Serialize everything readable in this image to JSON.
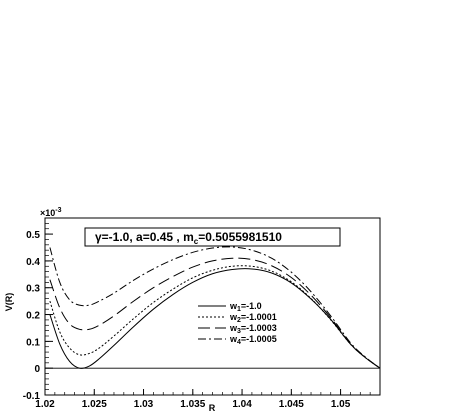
{
  "chart_data": {
    "type": "line",
    "title": "γ=-1.0, a=0.45 , m",
    "title_sub": "c",
    "title_value": "=0.5055981510",
    "xlabel": "R",
    "ylabel": "V(R)",
    "y_multiplier": "×10",
    "y_multiplier_exp": "-3",
    "xlim": [
      1.02,
      1.054
    ],
    "ylim": [
      -0.1,
      0.56
    ],
    "x_ticks": [
      1.02,
      1.025,
      1.03,
      1.035,
      1.04,
      1.045,
      1.05
    ],
    "x_tick_labels": [
      "1.02",
      "1.025",
      "1.03",
      "1.035",
      "1.04",
      "1.045",
      "1.05"
    ],
    "y_ticks": [
      -0.1,
      0,
      0.1,
      0.2,
      0.3,
      0.4,
      0.5
    ],
    "y_tick_labels": [
      "-0.1",
      "0",
      "0.1",
      "0.2",
      "0.3",
      "0.4",
      "0.5"
    ],
    "legend_position": "center-right",
    "grid": false,
    "series": [
      {
        "legend_main": "w",
        "legend_sub": "1",
        "legend_value": "=-1.0",
        "dash": "",
        "x": [
          1.0205,
          1.0215,
          1.0225,
          1.0235,
          1.0245,
          1.0255,
          1.027,
          1.029,
          1.031,
          1.033,
          1.035,
          1.037,
          1.039,
          1.041,
          1.043,
          1.045,
          1.047,
          1.049,
          1.051,
          1.0525,
          1.054
        ],
        "y": [
          0.2,
          0.09,
          0.025,
          0.0,
          0.008,
          0.035,
          0.085,
          0.155,
          0.22,
          0.275,
          0.32,
          0.352,
          0.368,
          0.37,
          0.355,
          0.318,
          0.258,
          0.182,
          0.09,
          0.04,
          0.0
        ]
      },
      {
        "legend_main": "w",
        "legend_sub": "2",
        "legend_value": "=-1.0001",
        "dash": "2,2",
        "x": [
          1.0205,
          1.0215,
          1.0225,
          1.0235,
          1.0245,
          1.0255,
          1.027,
          1.029,
          1.031,
          1.033,
          1.035,
          1.037,
          1.039,
          1.041,
          1.043,
          1.045,
          1.047,
          1.049,
          1.051,
          1.0525,
          1.054
        ],
        "y": [
          0.25,
          0.135,
          0.075,
          0.05,
          0.055,
          0.075,
          0.12,
          0.185,
          0.245,
          0.295,
          0.337,
          0.365,
          0.38,
          0.38,
          0.362,
          0.322,
          0.26,
          0.18,
          0.09,
          0.04,
          0.0
        ]
      },
      {
        "legend_main": "w",
        "legend_sub": "3",
        "legend_value": "=-1.0003",
        "dash": "12,5",
        "x": [
          1.0205,
          1.0215,
          1.0225,
          1.0235,
          1.0245,
          1.0255,
          1.027,
          1.029,
          1.031,
          1.033,
          1.035,
          1.037,
          1.039,
          1.041,
          1.043,
          1.045,
          1.047,
          1.049,
          1.051,
          1.0525,
          1.054
        ],
        "y": [
          0.33,
          0.225,
          0.165,
          0.145,
          0.145,
          0.16,
          0.195,
          0.25,
          0.3,
          0.342,
          0.377,
          0.4,
          0.41,
          0.405,
          0.382,
          0.338,
          0.272,
          0.188,
          0.09,
          0.04,
          0.0
        ]
      },
      {
        "legend_main": "w",
        "legend_sub": "4",
        "legend_value": "=-1.0005",
        "dash": "8,3,2,3",
        "x": [
          1.0205,
          1.0215,
          1.0225,
          1.0235,
          1.0245,
          1.0255,
          1.027,
          1.029,
          1.031,
          1.033,
          1.035,
          1.037,
          1.039,
          1.041,
          1.043,
          1.045,
          1.047,
          1.049,
          1.051,
          1.0525,
          1.054
        ],
        "y": [
          0.45,
          0.32,
          0.255,
          0.235,
          0.235,
          0.25,
          0.28,
          0.328,
          0.37,
          0.405,
          0.432,
          0.448,
          0.452,
          0.44,
          0.41,
          0.358,
          0.285,
          0.195,
          0.095,
          0.042,
          0.0
        ]
      }
    ]
  }
}
